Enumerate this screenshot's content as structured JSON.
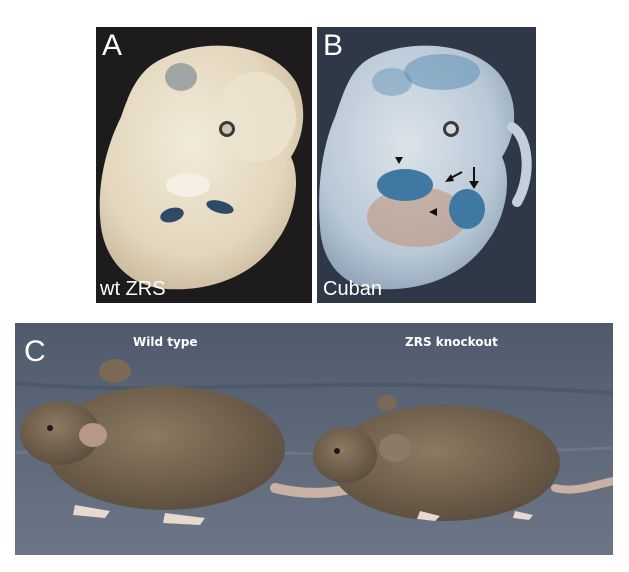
{
  "figure": {
    "panels": [
      {
        "letter": "A",
        "caption": "wt ZRS",
        "background": "#1c1c1c",
        "embryo_color": "#e8dcc6",
        "stain_color": "#2e4a66"
      },
      {
        "letter": "B",
        "caption": "Cuban",
        "background": "#2f3846",
        "embryo_color": "#c7d3df",
        "stain_color": "#3f78a0"
      },
      {
        "letter": "C",
        "labels": {
          "left": "Wild type",
          "right": "ZRS knockout"
        },
        "background": "#5d6778",
        "fur_color": "#7a6a55"
      }
    ]
  }
}
